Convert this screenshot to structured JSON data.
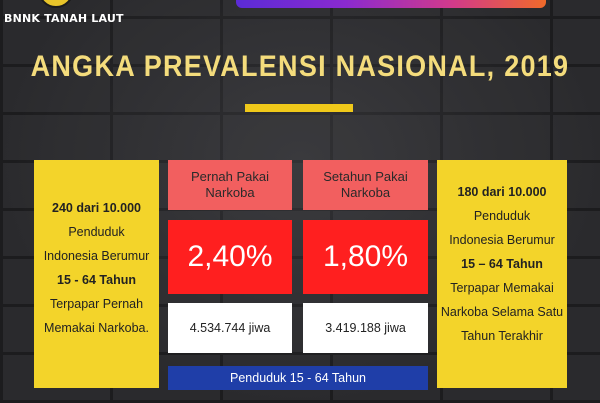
{
  "logo": {
    "text": "BNNK TANAH LAUT"
  },
  "title": "ANGKA PREVALENSI NASIONAL, 2019",
  "left_card": {
    "line1": "240 dari 10.000",
    "line2": "Penduduk",
    "line3": "Indonesia Berumur",
    "line4": "15 - 64 Tahun",
    "line5": "Terpapar Pernah",
    "line6": "Memakai Narkoba."
  },
  "right_card": {
    "line1": "180 dari 10.000",
    "line2": "Penduduk",
    "line3": "Indonesia Berumur",
    "line4": "15 – 64 Tahun",
    "line5": "Terpapar Memakai",
    "line6": "Narkoba Selama Satu",
    "line7": "Tahun Terakhir"
  },
  "col_left": {
    "header_line1": "Pernah Pakai",
    "header_line2": "Narkoba",
    "percent": "2,40%",
    "count": "4.534.744 jiwa"
  },
  "col_right": {
    "header_line1": "Setahun Pakai",
    "header_line2": "Narkoba",
    "percent": "1,80%",
    "count": "3.419.188 jiwa"
  },
  "footer": "Penduduk 15 - 64 Tahun",
  "colors": {
    "accent_yellow": "#f3d42a",
    "header_red": "#f25f5f",
    "percent_red": "#ff1f1f",
    "footer_blue": "#1f3ea8",
    "title_color": "#f4dc7c"
  }
}
